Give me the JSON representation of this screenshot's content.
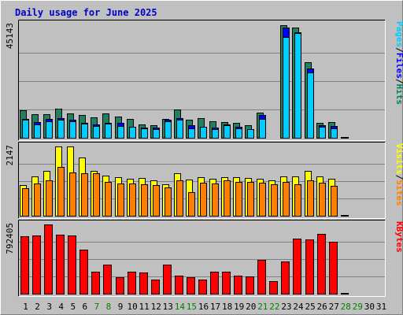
{
  "chart_data": {
    "type": "bar",
    "title": "Daily usage for June 2025",
    "days": [
      "1",
      "2",
      "3",
      "4",
      "5",
      "6",
      "7",
      "8",
      "9",
      "10",
      "11",
      "12",
      "13",
      "14",
      "15",
      "16",
      "17",
      "18",
      "19",
      "20",
      "21",
      "22",
      "23",
      "24",
      "25",
      "26",
      "27",
      "28",
      "29",
      "30",
      "31"
    ],
    "weekend_days": [
      "7",
      "8",
      "14",
      "15",
      "21",
      "22",
      "28",
      "29"
    ],
    "panels": [
      {
        "id": "hits",
        "ymax_label": "45143",
        "ymax": 45143,
        "labels": [
          {
            "text": "Pages",
            "color": "#00ccff"
          },
          {
            "text": "/",
            "color": "#000000"
          },
          {
            "text": "Files",
            "color": "#0000ff"
          },
          {
            "text": "/",
            "color": "#000000"
          },
          {
            "text": "Hits",
            "color": "#008060"
          }
        ],
        "series": [
          {
            "name": "Hits",
            "color": "#208060",
            "values": [
              11000,
              9400,
              9400,
              11500,
              9700,
              9000,
              8000,
              9800,
              8400,
              7500,
              5300,
              5100,
              7500,
              11300,
              7300,
              7700,
              6500,
              6200,
              5800,
              5100,
              10000,
              0,
              44900,
              43900,
              30000,
              6100,
              6300,
              0,
              0,
              0,
              0
            ]
          },
          {
            "name": "Files",
            "color": "#0000ff",
            "values": [
              7500,
              6200,
              7600,
              7700,
              7100,
              5800,
              5300,
              6000,
              5900,
              4500,
              4200,
              4100,
              7100,
              7900,
              4900,
              4300,
              4100,
              5200,
              4300,
              3600,
              9000,
              0,
              44000,
              42000,
              27500,
              5000,
              4700,
              0,
              0,
              0,
              0
            ]
          },
          {
            "name": "Pages",
            "color": "#00ccff",
            "values": [
              7200,
              5400,
              6600,
              7100,
              6500,
              5700,
              4600,
              5600,
              4800,
              4300,
              3800,
              3500,
              6500,
              7100,
              3800,
              4400,
              3600,
              4900,
              3800,
              3500,
              7600,
              0,
              40200,
              41600,
              25900,
              4300,
              3800,
              0,
              0,
              0,
              0
            ]
          }
        ]
      },
      {
        "id": "visits",
        "ymax_label": "2147",
        "ymax": 2147,
        "labels": [
          {
            "text": "Visits",
            "color": "#ffff00"
          },
          {
            "text": "/",
            "color": "#000000"
          },
          {
            "text": "Sites",
            "color": "#ff8000"
          }
        ],
        "series": [
          {
            "name": "Visits",
            "color": "#ffff00",
            "values": [
              950,
              1230,
              1400,
              2147,
              2147,
              1800,
              1380,
              1250,
              1200,
              1150,
              1180,
              1100,
              980,
              1320,
              1120,
              1200,
              1150,
              1200,
              1190,
              1180,
              1140,
              1090,
              1230,
              1220,
              1400,
              1230,
              1140,
              0,
              0,
              0,
              0
            ]
          },
          {
            "name": "Sites",
            "color": "#ff8000",
            "values": [
              850,
              1000,
              1100,
              1510,
              1340,
              1310,
              1320,
              1060,
              990,
              990,
              970,
              950,
              870,
              1090,
              720,
              1030,
              990,
              1090,
              1060,
              1060,
              1030,
              970,
              1040,
              970,
              1100,
              1030,
              930,
              0,
              0,
              0,
              0
            ]
          }
        ]
      },
      {
        "id": "kbytes",
        "ymax_label": "792405",
        "ymax": 792405,
        "labels": [
          {
            "text": "KBytes",
            "color": "#ff0000"
          }
        ],
        "series": [
          {
            "name": "KBytes",
            "color": "#ff0000",
            "values": [
              655000,
              670000,
              792405,
              675000,
              670000,
              505000,
              250000,
              330000,
              185000,
              255000,
              245000,
              165000,
              330000,
              205000,
              190000,
              165000,
              255000,
              255000,
              205000,
              200000,
              385000,
              140000,
              370000,
              630000,
              620000,
              680000,
              590000,
              0,
              0,
              0,
              0
            ]
          }
        ]
      }
    ]
  }
}
